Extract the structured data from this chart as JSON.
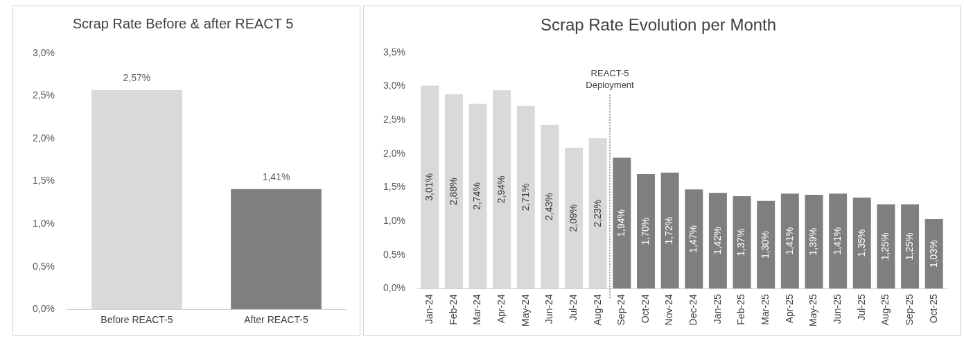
{
  "chart_data": [
    {
      "type": "bar",
      "title": "Scrap Rate Before & after REACT 5",
      "categories": [
        "Before REACT-5",
        "After REACT-5"
      ],
      "values": [
        2.57,
        1.41
      ],
      "colors": [
        "#d9d9d9",
        "#7f7f7f"
      ],
      "value_labels": [
        "2,57%",
        "1,41%"
      ],
      "ylim": [
        0,
        3
      ],
      "yticks": [
        {
          "value": 0,
          "label": "0,0%"
        },
        {
          "value": 0.5,
          "label": "0,5%"
        },
        {
          "value": 1,
          "label": "1,0%"
        },
        {
          "value": 1.5,
          "label": "1,5%"
        },
        {
          "value": 2,
          "label": "2,0%"
        },
        {
          "value": 2.5,
          "label": "2,5%"
        },
        {
          "value": 3,
          "label": "3,0%"
        }
      ],
      "grid": false,
      "legend": false
    },
    {
      "type": "bar",
      "title": "Scrap Rate Evolution per Month",
      "categories": [
        "Jan-24",
        "Feb-24",
        "Mar-24",
        "Apr-24",
        "May-24",
        "Jun-24",
        "Jul-24",
        "Aug-24",
        "Sep-24",
        "Oct-24",
        "Nov-24",
        "Dec-24",
        "Jan-25",
        "Feb-25",
        "Mar-25",
        "Apr-25",
        "May-25",
        "Jun-25",
        "Jul-25",
        "Aug-25",
        "Sep-25",
        "Oct-25"
      ],
      "values": [
        3.01,
        2.88,
        2.74,
        2.94,
        2.71,
        2.43,
        2.09,
        2.23,
        1.94,
        1.7,
        1.72,
        1.47,
        1.42,
        1.37,
        1.3,
        1.41,
        1.39,
        1.41,
        1.35,
        1.25,
        1.25,
        1.03
      ],
      "colors": [
        "#d9d9d9",
        "#d9d9d9",
        "#d9d9d9",
        "#d9d9d9",
        "#d9d9d9",
        "#d9d9d9",
        "#d9d9d9",
        "#d9d9d9",
        "#7f7f7f",
        "#7f7f7f",
        "#7f7f7f",
        "#7f7f7f",
        "#7f7f7f",
        "#7f7f7f",
        "#7f7f7f",
        "#7f7f7f",
        "#7f7f7f",
        "#7f7f7f",
        "#7f7f7f",
        "#7f7f7f",
        "#7f7f7f",
        "#7f7f7f"
      ],
      "value_labels": [
        "3,01%",
        "2,88%",
        "2,74%",
        "2,94%",
        "2,71%",
        "2,43%",
        "2,09%",
        "2,23%",
        "1,94%",
        "1,70%",
        "1,72%",
        "1,47%",
        "1,42%",
        "1,37%",
        "1,30%",
        "1,41%",
        "1,39%",
        "1,41%",
        "1,35%",
        "1,25%",
        "1,25%",
        "1,03%"
      ],
      "ylim": [
        0,
        3.5
      ],
      "yticks": [
        {
          "value": 0,
          "label": "0,0%"
        },
        {
          "value": 0.5,
          "label": "0,5%"
        },
        {
          "value": 1,
          "label": "1,0%"
        },
        {
          "value": 1.5,
          "label": "1,5%"
        },
        {
          "value": 2,
          "label": "2,0%"
        },
        {
          "value": 2.5,
          "label": "2,5%"
        },
        {
          "value": 3,
          "label": "3,0%"
        },
        {
          "value": 3.5,
          "label": "3,5%"
        }
      ],
      "grid": false,
      "legend": false,
      "annotations": [
        "REACT-5 Deployment"
      ]
    }
  ]
}
